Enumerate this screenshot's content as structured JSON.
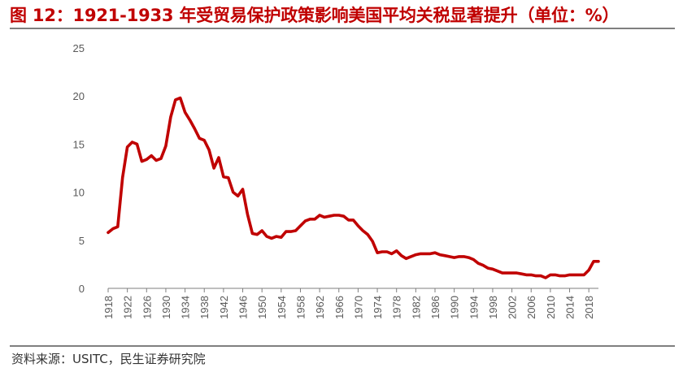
{
  "title": "图 12：1921-1933 年受贸易保护政策影响美国平均关税显著提升（单位：%）",
  "source": "资料来源：USITC，民生证券研究院",
  "colors": {
    "title": "#c00000",
    "line": "#c00000",
    "axis": "#7f7f7f"
  },
  "chart_data": {
    "type": "line",
    "title": "",
    "xlabel": "",
    "ylabel": "",
    "xlim": [
      1918,
      2020
    ],
    "ylim": [
      0,
      25
    ],
    "grid": false,
    "legend": "none",
    "y_ticks": [
      0,
      5,
      10,
      15,
      20,
      25
    ],
    "x_ticks": [
      1918,
      1922,
      1926,
      1930,
      1934,
      1938,
      1942,
      1946,
      1950,
      1954,
      1958,
      1962,
      1966,
      1970,
      1974,
      1978,
      1982,
      1986,
      1990,
      1994,
      1998,
      2002,
      2006,
      2010,
      2014,
      2018
    ],
    "series": [
      {
        "x": [
          1918,
          1919,
          1920,
          1921,
          1922,
          1923,
          1924,
          1925,
          1926,
          1927,
          1928,
          1929,
          1930,
          1931,
          1932,
          1933,
          1934,
          1935,
          1936,
          1937,
          1938,
          1939,
          1940,
          1941,
          1942,
          1943,
          1944,
          1945,
          1946,
          1947,
          1948,
          1949,
          1950,
          1951,
          1952,
          1953,
          1954,
          1955,
          1956,
          1957,
          1958,
          1959,
          1960,
          1961,
          1962,
          1963,
          1964,
          1965,
          1966,
          1967,
          1968,
          1969,
          1970,
          1971,
          1972,
          1973,
          1974,
          1975,
          1976,
          1977,
          1978,
          1979,
          1980,
          1981,
          1982,
          1983,
          1984,
          1985,
          1986,
          1987,
          1988,
          1989,
          1990,
          1991,
          1992,
          1993,
          1994,
          1995,
          1996,
          1997,
          1998,
          1999,
          2000,
          2001,
          2002,
          2003,
          2004,
          2005,
          2006,
          2007,
          2008,
          2009,
          2010,
          2011,
          2012,
          2013,
          2014,
          2015,
          2016,
          2017,
          2018,
          2019,
          2020
        ],
        "values": [
          5.8,
          6.2,
          6.4,
          11.5,
          14.7,
          15.2,
          15.0,
          13.2,
          13.4,
          13.8,
          13.3,
          13.5,
          14.8,
          17.8,
          19.6,
          19.8,
          18.3,
          17.5,
          16.6,
          15.6,
          15.4,
          14.4,
          12.5,
          13.6,
          11.6,
          11.5,
          10.0,
          9.6,
          10.3,
          7.7,
          5.7,
          5.6,
          6.0,
          5.4,
          5.2,
          5.4,
          5.3,
          5.9,
          5.9,
          6.0,
          6.5,
          7.0,
          7.2,
          7.2,
          7.6,
          7.4,
          7.5,
          7.6,
          7.6,
          7.5,
          7.1,
          7.1,
          6.5,
          6.0,
          5.6,
          4.9,
          3.7,
          3.8,
          3.8,
          3.6,
          3.9,
          3.4,
          3.1,
          3.3,
          3.5,
          3.6,
          3.6,
          3.6,
          3.7,
          3.5,
          3.4,
          3.3,
          3.2,
          3.3,
          3.3,
          3.2,
          3.0,
          2.6,
          2.4,
          2.1,
          2.0,
          1.8,
          1.6,
          1.6,
          1.6,
          1.6,
          1.5,
          1.4,
          1.4,
          1.3,
          1.3,
          1.1,
          1.4,
          1.4,
          1.3,
          1.3,
          1.4,
          1.4,
          1.4,
          1.4,
          1.9,
          2.8,
          2.8
        ]
      }
    ]
  }
}
